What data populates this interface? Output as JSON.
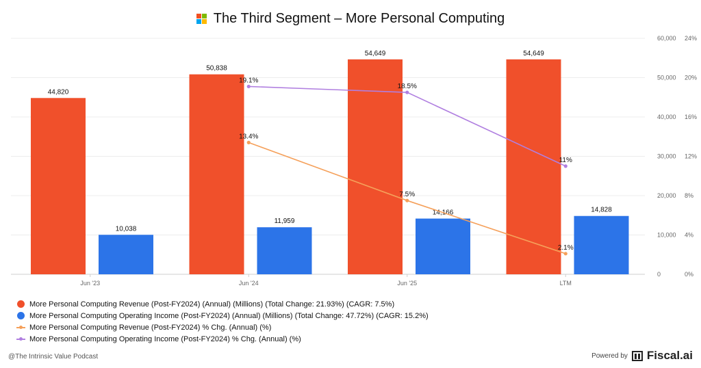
{
  "header": {
    "title": "The Third Segment – More Personal Computing",
    "logo_colors": [
      "#f25022",
      "#7fba00",
      "#00a4ef",
      "#ffb900"
    ]
  },
  "chart_data": {
    "type": "bar",
    "categories": [
      "Jun '23",
      "Jun '24",
      "Jun '25",
      "LTM"
    ],
    "left_axis": {
      "ticks": [
        "0",
        "10,000",
        "20,000",
        "30,000",
        "40,000",
        "50,000",
        "60,000"
      ],
      "ylim": [
        0,
        60000
      ]
    },
    "right_axis": {
      "ticks": [
        "0%",
        "4%",
        "8%",
        "12%",
        "16%",
        "20%",
        "24%"
      ],
      "ylim": [
        0,
        24
      ]
    },
    "bar_series": [
      {
        "name": "More Personal Computing Revenue (Post-FY2024) (Annual) (Millions) (Total Change: 21.93%) (CAGR: 7.5%)",
        "color": "#f0502b",
        "values": [
          44820,
          50838,
          54649,
          54649
        ],
        "labels": [
          "44,820",
          "50,838",
          "54,649",
          "54,649"
        ]
      },
      {
        "name": "More Personal Computing Operating Income (Post-FY2024) (Annual) (Millions) (Total Change: 47.72%) (CAGR: 15.2%)",
        "color": "#2c74e8",
        "values": [
          10038,
          11959,
          14166,
          14828
        ],
        "labels": [
          "10,038",
          "11,959",
          "14,166",
          "14,828"
        ]
      }
    ],
    "line_series": [
      {
        "name": "More Personal Computing Revenue (Post-FY2024) % Chg. (Annual) (%)",
        "color": "#f5a05a",
        "values": [
          null,
          13.4,
          7.5,
          2.1
        ],
        "labels": [
          "",
          "13.4%",
          "7.5%",
          "2.1%"
        ]
      },
      {
        "name": "More Personal Computing Operating Income (Post-FY2024) % Chg. (Annual) (%)",
        "color": "#b07fe0",
        "values": [
          null,
          19.1,
          18.5,
          11
        ],
        "labels": [
          "",
          "19.1%",
          "18.5%",
          "11%"
        ]
      }
    ],
    "grid": true,
    "legend_position": "bottom-left"
  },
  "footer": {
    "credit": "@The Intrinsic Value Podcast",
    "powered_by": "Powered by",
    "brand": "Fiscal.ai"
  }
}
